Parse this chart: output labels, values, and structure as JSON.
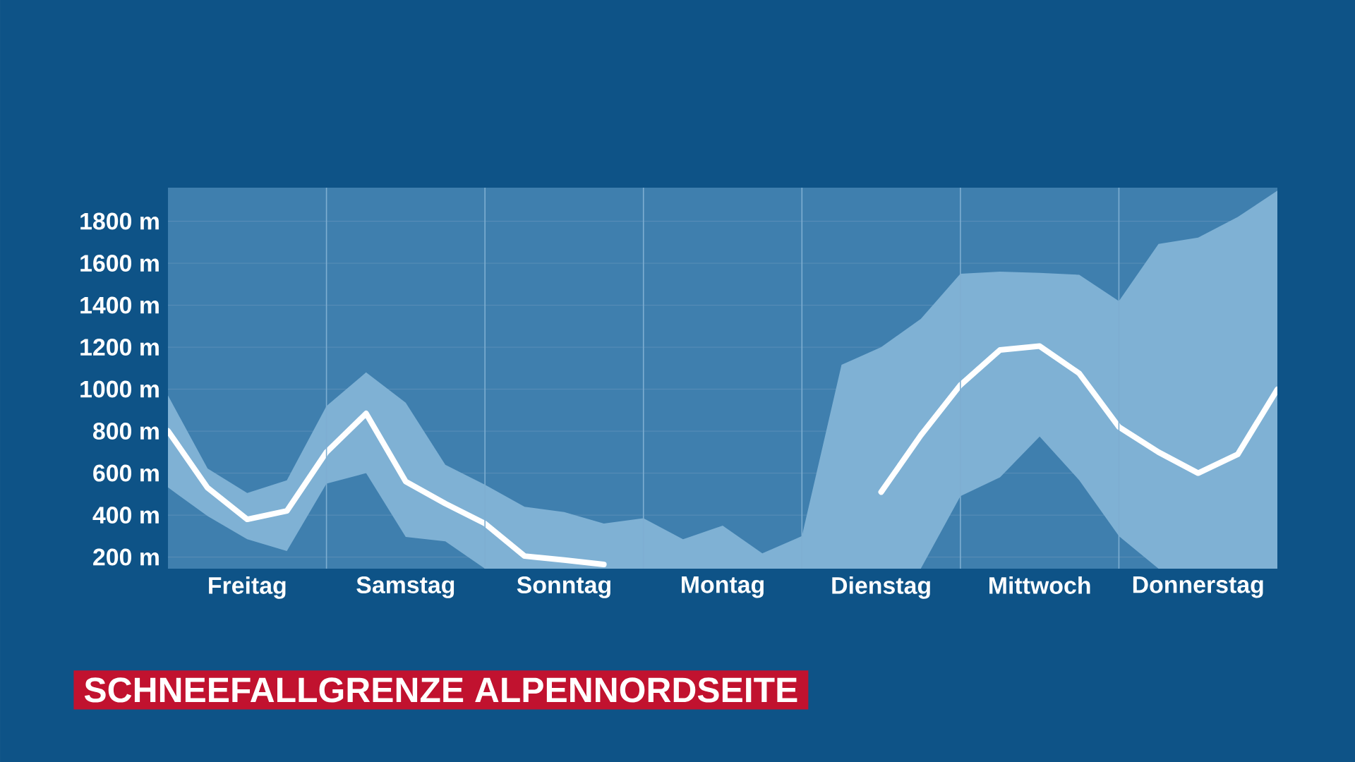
{
  "chart_data": {
    "type": "line",
    "title": "SCHNEEFALLGRENZE ALPENNORDSEITE",
    "categories": [
      null,
      null,
      "Freitag",
      null,
      null,
      null,
      "Samstag",
      null,
      null,
      null,
      "Sonntag",
      null,
      null,
      null,
      "Montag",
      null,
      null,
      null,
      "Dienstag",
      null,
      null,
      null,
      "Mittwoch",
      null,
      null,
      null,
      "Donnerstag",
      null,
      null
    ],
    "series": [
      {
        "color": "#ffffff",
        "values": [
          801,
          530,
          380,
          420,
          700,
          884,
          560,
          455,
          360,
          205,
          186,
          165,
          null,
          null,
          null,
          null,
          null,
          null,
          510,
          780,
          1020,
          1187,
          1205,
          1075,
          820,
          700,
          600,
          690,
          999
        ],
        "upper": [
          970,
          622,
          505,
          566,
          920,
          1080,
          936,
          640,
          545,
          440,
          415,
          360,
          385,
          285,
          350,
          218,
          300,
          1116,
          1200,
          1335,
          1550,
          1560,
          1554,
          1545,
          1420,
          1692,
          1722,
          1820,
          1946
        ],
        "lower": [
          532,
          395,
          285,
          229,
          550,
          600,
          296,
          275,
          145,
          145,
          145,
          145,
          145,
          145,
          145,
          145,
          145,
          145,
          145,
          145,
          490,
          580,
          774,
          566,
          300,
          145,
          145,
          145,
          145
        ]
      }
    ],
    "ylim": [
      145,
      1960
    ],
    "yticks": [
      {
        "value": 200,
        "label": "200 m"
      },
      {
        "value": 400,
        "label": "400 m"
      },
      {
        "value": 600,
        "label": "600 m"
      },
      {
        "value": 800,
        "label": "800 m"
      },
      {
        "value": 1000,
        "label": "1000 m"
      },
      {
        "value": 1200,
        "label": "1200 m"
      },
      {
        "value": 1400,
        "label": "1400 m"
      },
      {
        "value": 1600,
        "label": "1600 m"
      },
      {
        "value": 1800,
        "label": "1800 m"
      }
    ],
    "grid": true
  }
}
